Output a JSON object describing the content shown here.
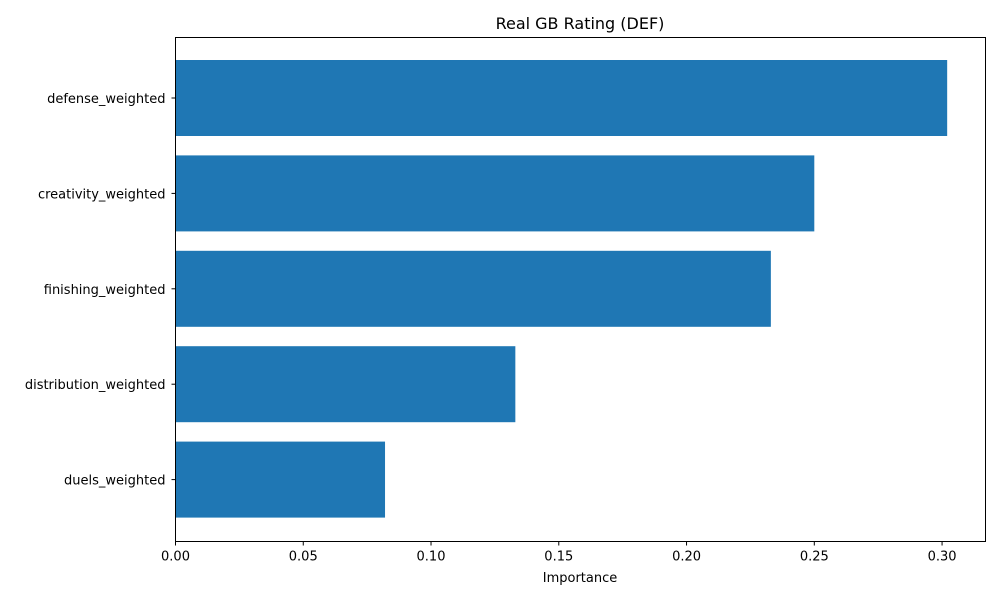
{
  "chart_data": {
    "type": "bar",
    "orientation": "horizontal",
    "title": "Real GB Rating (DEF)",
    "xlabel": "Importance",
    "ylabel": "",
    "categories": [
      "defense_weighted",
      "creativity_weighted",
      "finishing_weighted",
      "distribution_weighted",
      "duels_weighted"
    ],
    "values": [
      0.302,
      0.25,
      0.233,
      0.133,
      0.082
    ],
    "xlim": [
      0,
      0.317
    ],
    "xticks": [
      "0.00",
      "0.05",
      "0.10",
      "0.15",
      "0.20",
      "0.25",
      "0.30"
    ],
    "bar_color": "#1f77b4",
    "grid": false,
    "legend": "none"
  }
}
